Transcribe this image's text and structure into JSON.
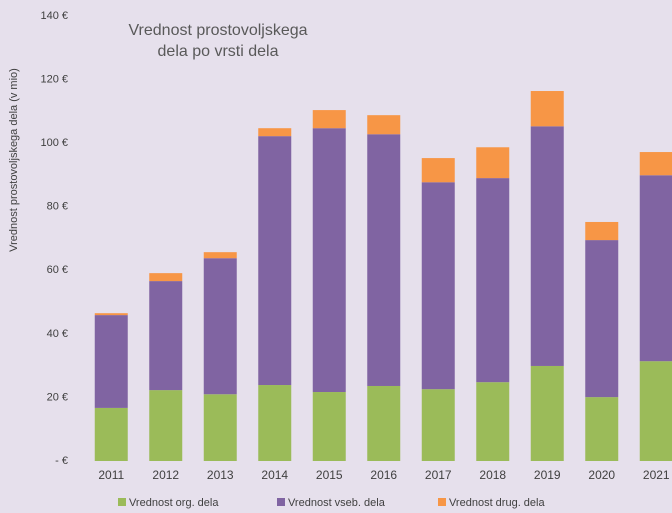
{
  "chart_data": {
    "type": "stacked_bar",
    "title": [
      "Vrednost prostovoljskega",
      "dela po vrsti dela"
    ],
    "y_label": "Vrednost prostovoljskega dela (v mio)",
    "categories": [
      "2011",
      "2012",
      "2013",
      "2014",
      "2015",
      "2016",
      "2017",
      "2018",
      "2019",
      "2020",
      "2021"
    ],
    "series": [
      {
        "name": "Vrednost org. dela",
        "color": "#9bbb59",
        "values": [
          16.7,
          22.3,
          21.0,
          23.9,
          21.7,
          23.6,
          22.6,
          24.8,
          29.9,
          20.1,
          31.4
        ]
      },
      {
        "name": "Vrednost vseb. dela",
        "color": "#8064a2",
        "values": [
          29.2,
          34.3,
          42.8,
          78.3,
          83.0,
          79.2,
          65.1,
          64.2,
          75.4,
          49.4,
          58.5
        ]
      },
      {
        "name": "Vrednost drug. dela",
        "color": "#f79646",
        "values": [
          0.6,
          2.5,
          1.9,
          2.5,
          5.7,
          6.0,
          7.6,
          9.7,
          11.1,
          5.7,
          7.3
        ]
      }
    ],
    "ylim": [
      0,
      140
    ],
    "yticks": [
      {
        "value": 0,
        "label": "- €"
      },
      {
        "value": 20,
        "label": "20 €"
      },
      {
        "value": 40,
        "label": "40 €"
      },
      {
        "value": 60,
        "label": "60 €"
      },
      {
        "value": 80,
        "label": "80 €"
      },
      {
        "value": 100,
        "label": "100 €"
      },
      {
        "value": 120,
        "label": "120 €"
      },
      {
        "value": 140,
        "label": "140 €"
      }
    ],
    "grid": false,
    "legend": "bottom"
  }
}
